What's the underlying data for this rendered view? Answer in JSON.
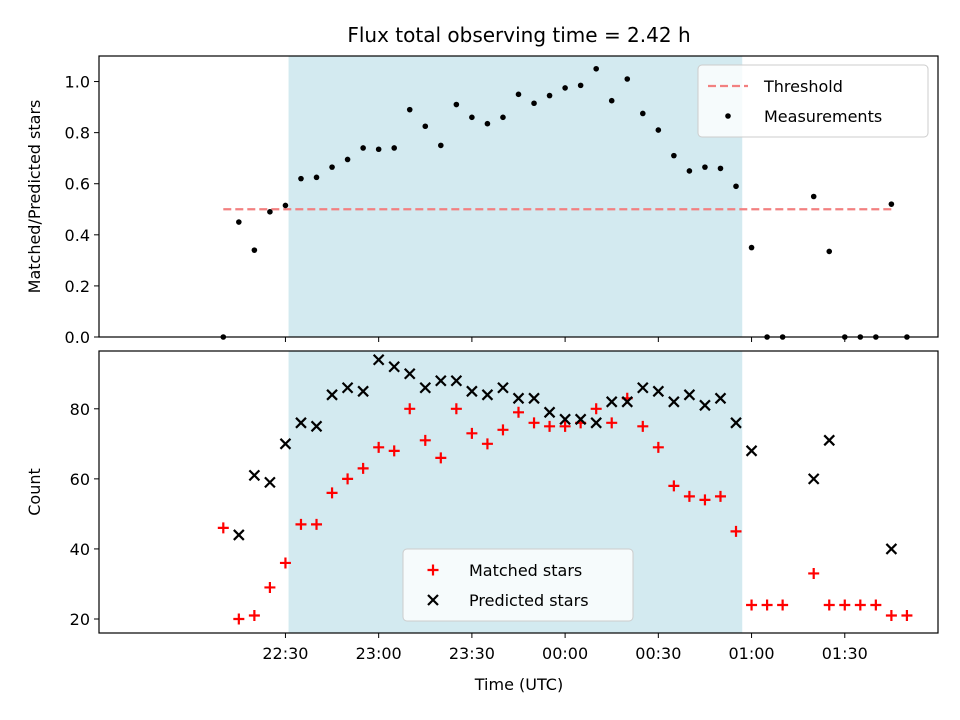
{
  "chart_data": {
    "type": "scatter",
    "title": "Flux total observing time = 2.42 h",
    "shaded_region": {
      "x_start": "22:31",
      "x_end": "00:57",
      "color": "#d3eaf0"
    },
    "x_unit": "minutes relative to 00:00 UTC",
    "xlabel": "Time (UTC)",
    "xlim": [
      -150,
      120
    ],
    "x_ticks": [
      -90,
      -60,
      -30,
      0,
      30,
      60,
      90
    ],
    "x_tick_labels": [
      "22:30",
      "23:00",
      "23:30",
      "00:00",
      "00:30",
      "01:00",
      "01:30"
    ],
    "panels": [
      {
        "name": "ratio",
        "ylabel": "Matched/Predicted stars",
        "ylim": [
          0,
          1.1
        ],
        "y_ticks": [
          0.0,
          0.2,
          0.4,
          0.6,
          0.8,
          1.0
        ],
        "y_tick_labels": [
          "0.0",
          "0.2",
          "0.4",
          "0.6",
          "0.8",
          "1.0"
        ],
        "legend_position": "top-right",
        "threshold": {
          "name": "Threshold",
          "value": 0.5,
          "x_range": [
            -110,
            105
          ],
          "color": "#f28080"
        },
        "series": [
          {
            "name": "Measurements",
            "marker": "dot",
            "color": "#000000",
            "points": [
              {
                "x": -110,
                "y": 0.0
              },
              {
                "x": -105,
                "y": 0.45
              },
              {
                "x": -100,
                "y": 0.34
              },
              {
                "x": -95,
                "y": 0.49
              },
              {
                "x": -90,
                "y": 0.515
              },
              {
                "x": -85,
                "y": 0.62
              },
              {
                "x": -80,
                "y": 0.625
              },
              {
                "x": -75,
                "y": 0.665
              },
              {
                "x": -70,
                "y": 0.695
              },
              {
                "x": -65,
                "y": 0.74
              },
              {
                "x": -60,
                "y": 0.735
              },
              {
                "x": -55,
                "y": 0.74
              },
              {
                "x": -50,
                "y": 0.89
              },
              {
                "x": -45,
                "y": 0.825
              },
              {
                "x": -40,
                "y": 0.75
              },
              {
                "x": -35,
                "y": 0.91
              },
              {
                "x": -30,
                "y": 0.86
              },
              {
                "x": -25,
                "y": 0.835
              },
              {
                "x": -20,
                "y": 0.86
              },
              {
                "x": -15,
                "y": 0.95
              },
              {
                "x": -10,
                "y": 0.915
              },
              {
                "x": -5,
                "y": 0.945
              },
              {
                "x": 0,
                "y": 0.975
              },
              {
                "x": 5,
                "y": 0.985
              },
              {
                "x": 10,
                "y": 1.05
              },
              {
                "x": 15,
                "y": 0.925
              },
              {
                "x": 20,
                "y": 1.01
              },
              {
                "x": 25,
                "y": 0.875
              },
              {
                "x": 30,
                "y": 0.81
              },
              {
                "x": 35,
                "y": 0.71
              },
              {
                "x": 40,
                "y": 0.65
              },
              {
                "x": 45,
                "y": 0.665
              },
              {
                "x": 50,
                "y": 0.66
              },
              {
                "x": 55,
                "y": 0.59
              },
              {
                "x": 60,
                "y": 0.35
              },
              {
                "x": 65,
                "y": 0.0
              },
              {
                "x": 70,
                "y": 0.0
              },
              {
                "x": 80,
                "y": 0.55
              },
              {
                "x": 85,
                "y": 0.335
              },
              {
                "x": 90,
                "y": 0.0
              },
              {
                "x": 95,
                "y": 0.0
              },
              {
                "x": 100,
                "y": 0.0
              },
              {
                "x": 105,
                "y": 0.52
              },
              {
                "x": 110,
                "y": 0.0
              }
            ]
          }
        ]
      },
      {
        "name": "counts",
        "ylabel": "Count",
        "ylim": [
          16,
          96.5
        ],
        "y_ticks": [
          20,
          40,
          60,
          80
        ],
        "y_tick_labels": [
          "20",
          "40",
          "60",
          "80"
        ],
        "legend_position": "bottom-center",
        "series": [
          {
            "name": "Matched stars",
            "marker": "plus",
            "color": "#ff0000",
            "points": [
              {
                "x": -110,
                "y": 46
              },
              {
                "x": -105,
                "y": 20
              },
              {
                "x": -100,
                "y": 21
              },
              {
                "x": -95,
                "y": 29
              },
              {
                "x": -90,
                "y": 36
              },
              {
                "x": -85,
                "y": 47
              },
              {
                "x": -80,
                "y": 47
              },
              {
                "x": -75,
                "y": 56
              },
              {
                "x": -70,
                "y": 60
              },
              {
                "x": -65,
                "y": 63
              },
              {
                "x": -60,
                "y": 69
              },
              {
                "x": -55,
                "y": 68
              },
              {
                "x": -50,
                "y": 80
              },
              {
                "x": -45,
                "y": 71
              },
              {
                "x": -40,
                "y": 66
              },
              {
                "x": -35,
                "y": 80
              },
              {
                "x": -30,
                "y": 73
              },
              {
                "x": -25,
                "y": 70
              },
              {
                "x": -20,
                "y": 74
              },
              {
                "x": -15,
                "y": 79
              },
              {
                "x": -10,
                "y": 76
              },
              {
                "x": -5,
                "y": 75
              },
              {
                "x": 0,
                "y": 75
              },
              {
                "x": 5,
                "y": 76
              },
              {
                "x": 10,
                "y": 80
              },
              {
                "x": 15,
                "y": 76
              },
              {
                "x": 20,
                "y": 83
              },
              {
                "x": 25,
                "y": 75
              },
              {
                "x": 30,
                "y": 69
              },
              {
                "x": 35,
                "y": 58
              },
              {
                "x": 40,
                "y": 55
              },
              {
                "x": 45,
                "y": 54
              },
              {
                "x": 50,
                "y": 55
              },
              {
                "x": 55,
                "y": 45
              },
              {
                "x": 60,
                "y": 24
              },
              {
                "x": 65,
                "y": 24
              },
              {
                "x": 70,
                "y": 24
              },
              {
                "x": 80,
                "y": 33
              },
              {
                "x": 85,
                "y": 24
              },
              {
                "x": 90,
                "y": 24
              },
              {
                "x": 95,
                "y": 24
              },
              {
                "x": 100,
                "y": 24
              },
              {
                "x": 105,
                "y": 21
              },
              {
                "x": 110,
                "y": 21
              }
            ]
          },
          {
            "name": "Predicted stars",
            "marker": "x",
            "color": "#000000",
            "points": [
              {
                "x": -105,
                "y": 44
              },
              {
                "x": -100,
                "y": 61
              },
              {
                "x": -95,
                "y": 59
              },
              {
                "x": -90,
                "y": 70
              },
              {
                "x": -85,
                "y": 76
              },
              {
                "x": -80,
                "y": 75
              },
              {
                "x": -75,
                "y": 84
              },
              {
                "x": -70,
                "y": 86
              },
              {
                "x": -65,
                "y": 85
              },
              {
                "x": -60,
                "y": 94
              },
              {
                "x": -55,
                "y": 92
              },
              {
                "x": -50,
                "y": 90
              },
              {
                "x": -45,
                "y": 86
              },
              {
                "x": -40,
                "y": 88
              },
              {
                "x": -35,
                "y": 88
              },
              {
                "x": -30,
                "y": 85
              },
              {
                "x": -25,
                "y": 84
              },
              {
                "x": -20,
                "y": 86
              },
              {
                "x": -15,
                "y": 83
              },
              {
                "x": -10,
                "y": 83
              },
              {
                "x": -5,
                "y": 79
              },
              {
                "x": 0,
                "y": 77
              },
              {
                "x": 5,
                "y": 77
              },
              {
                "x": 10,
                "y": 76
              },
              {
                "x": 15,
                "y": 82
              },
              {
                "x": 20,
                "y": 82
              },
              {
                "x": 25,
                "y": 86
              },
              {
                "x": 30,
                "y": 85
              },
              {
                "x": 35,
                "y": 82
              },
              {
                "x": 40,
                "y": 84
              },
              {
                "x": 45,
                "y": 81
              },
              {
                "x": 50,
                "y": 83
              },
              {
                "x": 55,
                "y": 76
              },
              {
                "x": 60,
                "y": 68
              },
              {
                "x": 80,
                "y": 60
              },
              {
                "x": 85,
                "y": 71
              },
              {
                "x": 105,
                "y": 40
              }
            ]
          }
        ]
      }
    ]
  }
}
